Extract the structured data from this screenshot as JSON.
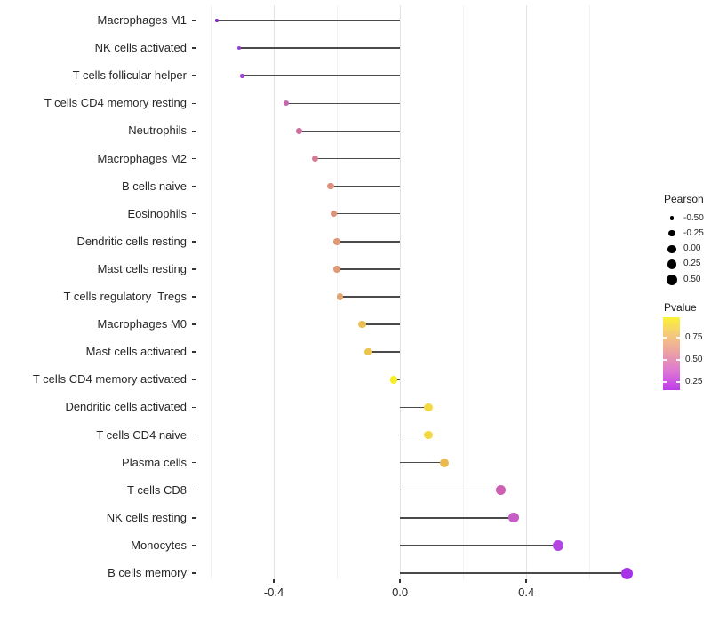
{
  "chart_data": {
    "type": "lollipop",
    "title": "",
    "xlabel": "",
    "ylabel": "",
    "orientation": "horizontal",
    "grid": "vertical-only",
    "xlim": [
      -0.645,
      0.785
    ],
    "x_major_ticks": [
      -0.4,
      0.0,
      0.4
    ],
    "x_tick_labels": [
      "-0.4",
      "0.0",
      "0.4"
    ],
    "x_minor_ticks": [
      -0.6,
      -0.2,
      0.2,
      0.6
    ],
    "baseline": 0.0,
    "categories": [
      "Macrophages M1",
      "NK cells activated",
      "T cells follicular helper",
      "T cells CD4 memory resting",
      "Neutrophils",
      "Macrophages M2",
      "B cells naive",
      "Eosinophils",
      "Dendritic cells resting",
      "Mast cells resting",
      "T cells regulatory  Tregs",
      "Macrophages M0",
      "Mast cells activated",
      "T cells CD4 memory activated",
      "Dendritic cells activated",
      "T cells CD4 naive",
      "Plasma cells",
      "T cells CD8",
      "NK cells resting",
      "Monocytes",
      "B cells memory"
    ],
    "series": [
      {
        "name": "Pearson",
        "values": [
          -0.58,
          -0.51,
          -0.5,
          -0.36,
          -0.32,
          -0.27,
          -0.22,
          -0.21,
          -0.2,
          -0.2,
          -0.19,
          -0.12,
          -0.1,
          -0.02,
          0.09,
          0.09,
          0.14,
          0.32,
          0.36,
          0.5,
          0.72
        ]
      }
    ],
    "point_colors": [
      "#7d2bc8",
      "#9b3bd4",
      "#a041d6",
      "#c765ae",
      "#cc6f9e",
      "#d37b93",
      "#dc8f7d",
      "#dd9178",
      "#e09976",
      "#e09a78",
      "#e2a471",
      "#ecc153",
      "#edc350",
      "#f6ee20",
      "#f4da41",
      "#f4d943",
      "#eab950",
      "#cd60b2",
      "#c65cc6",
      "#b045e2",
      "#a832e8"
    ],
    "stem_color": "#4a4a4a",
    "legend_size": {
      "title": "Pearson",
      "labels": [
        "-0.50",
        "-0.25",
        "0.00",
        "0.25",
        "0.50"
      ],
      "values": [
        -0.5,
        -0.25,
        0.0,
        0.25,
        0.5
      ],
      "dot_color": "#000000"
    },
    "legend_color": {
      "title": "Pvalue",
      "tick_labels": [
        "0.75",
        "0.50",
        "0.25"
      ],
      "gradient_top_to_bottom": [
        "#fbf235",
        "#f4c77e",
        "#eb9fa6",
        "#dd75d5",
        "#bc3ce8"
      ]
    }
  }
}
